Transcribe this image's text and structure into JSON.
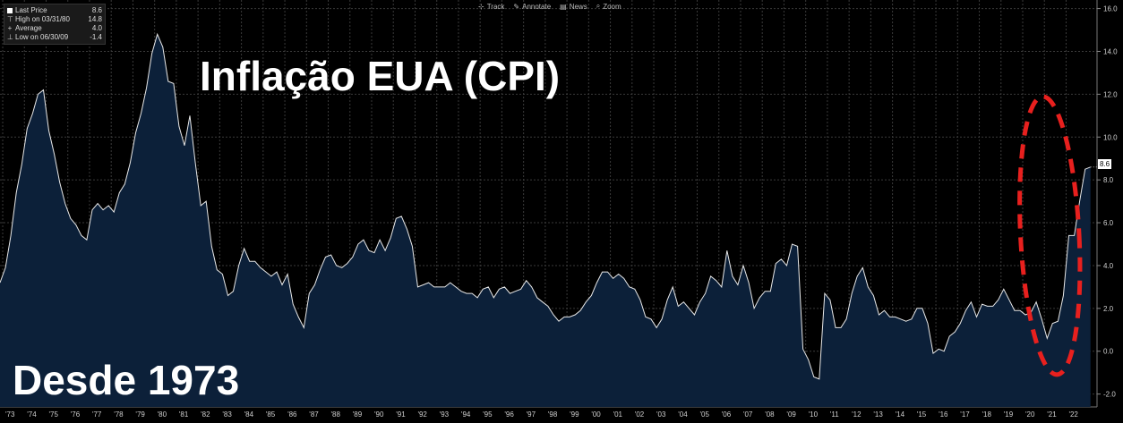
{
  "legend": {
    "rows": [
      {
        "icon": "square-icon",
        "label": "Last Price",
        "value": "8.6"
      },
      {
        "icon": "high-marker-icon",
        "label": "High on 03/31/80",
        "value": "14.8"
      },
      {
        "icon": "average-marker-icon",
        "label": "Average",
        "value": "4.0"
      },
      {
        "icon": "low-marker-icon",
        "label": "Low on 06/30/09",
        "value": "-1.4"
      }
    ]
  },
  "toolbar": {
    "items": [
      {
        "icon": "track-icon",
        "glyph": "⊹",
        "label": "Track"
      },
      {
        "icon": "annotate-icon",
        "glyph": "✎",
        "label": "Annotate"
      },
      {
        "icon": "news-icon",
        "glyph": "▤",
        "label": "News"
      },
      {
        "icon": "zoom-icon",
        "glyph": "⌕",
        "label": "Zoom"
      }
    ]
  },
  "overlay": {
    "title": "Inflação EUA (CPI)",
    "subtitle": "Desde 1973"
  },
  "last_badge": "8.6",
  "colors": {
    "background": "#000000",
    "area_fill": "#0c2039",
    "line": "#e8e8e8",
    "grid": "#3a3a3a",
    "highlight_ellipse": "#e8201e"
  },
  "chart_data": {
    "type": "area",
    "grid": true,
    "y_axis_position": "right",
    "ylim": [
      -2.6,
      16.4
    ],
    "yticks": [
      "-2.0",
      "0.0",
      "2.0",
      "4.0",
      "6.0",
      "8.0",
      "10.0",
      "12.0",
      "14.0",
      "16.0"
    ],
    "xticks": [
      "'73",
      "'74",
      "'75",
      "'76",
      "'77",
      "'78",
      "'79",
      "'80",
      "'81",
      "'82",
      "'83",
      "'84",
      "'85",
      "'86",
      "'87",
      "'88",
      "'89",
      "'90",
      "'91",
      "'92",
      "'93",
      "'94",
      "'95",
      "'96",
      "'97",
      "'98",
      "'99",
      "'00",
      "'01",
      "'02",
      "'03",
      "'04",
      "'05",
      "'06",
      "'07",
      "'08",
      "'09",
      "'10",
      "'11",
      "'12",
      "'13",
      "'14",
      "'15",
      "'16",
      "'17",
      "'18",
      "'19",
      "'20",
      "'21",
      "'22"
    ],
    "x_start": 1972.875,
    "x_step": 0.25,
    "values": [
      3.2,
      3.9,
      5.4,
      7.4,
      8.7,
      10.4,
      11.1,
      12.0,
      12.2,
      10.3,
      9.2,
      7.9,
      6.9,
      6.2,
      5.9,
      5.4,
      5.2,
      6.6,
      6.9,
      6.6,
      6.8,
      6.5,
      7.4,
      7.8,
      8.8,
      10.2,
      11.1,
      12.3,
      13.9,
      14.8,
      14.2,
      12.6,
      12.5,
      10.5,
      9.6,
      11.0,
      8.8,
      6.8,
      7.0,
      4.9,
      3.8,
      3.6,
      2.6,
      2.8,
      4.0,
      4.8,
      4.2,
      4.2,
      3.9,
      3.7,
      3.5,
      3.7,
      3.1,
      3.6,
      2.2,
      1.6,
      1.1,
      2.7,
      3.1,
      3.8,
      4.4,
      4.5,
      4.0,
      3.9,
      4.1,
      4.4,
      5.0,
      5.2,
      4.7,
      4.6,
      5.2,
      4.7,
      5.3,
      6.2,
      6.3,
      5.7,
      4.9,
      3.0,
      3.1,
      3.2,
      3.0,
      3.0,
      3.0,
      3.2,
      3.0,
      2.8,
      2.7,
      2.7,
      2.5,
      2.9,
      3.0,
      2.5,
      2.9,
      3.0,
      2.7,
      2.8,
      2.9,
      3.3,
      3.0,
      2.5,
      2.3,
      2.1,
      1.7,
      1.4,
      1.6,
      1.6,
      1.7,
      1.9,
      2.3,
      2.6,
      3.2,
      3.7,
      3.7,
      3.4,
      3.6,
      3.4,
      3.0,
      2.9,
      2.4,
      1.6,
      1.5,
      1.1,
      1.5,
      2.4,
      3.0,
      2.1,
      2.3,
      2.0,
      1.7,
      2.3,
      2.7,
      3.5,
      3.3,
      3.0,
      4.7,
      3.5,
      3.1,
      4.0,
      3.2,
      2.0,
      2.5,
      2.8,
      2.8,
      4.1,
      4.3,
      4.0,
      5.0,
      4.9,
      0.1,
      -0.4,
      -1.2,
      -1.3,
      2.7,
      2.4,
      1.1,
      1.1,
      1.5,
      2.7,
      3.5,
      3.9,
      3.0,
      2.6,
      1.7,
      1.9,
      1.6,
      1.6,
      1.5,
      1.4,
      1.5,
      2.0,
      2.0,
      1.3,
      -0.1,
      0.1,
      0.0,
      0.7,
      0.9,
      1.3,
      1.9,
      2.3,
      1.6,
      2.2,
      2.1,
      2.1,
      2.4,
      2.9,
      2.4,
      1.9,
      1.9,
      1.7,
      1.8,
      2.3,
      1.5,
      0.6,
      1.3,
      1.4,
      2.6,
      5.4,
      5.4,
      7.0,
      8.5,
      8.6
    ],
    "highlight": {
      "x_range": [
        2019.9,
        2022.6
      ],
      "y_range": [
        -1.1,
        11.9
      ],
      "style": "dashed-ellipse"
    }
  }
}
